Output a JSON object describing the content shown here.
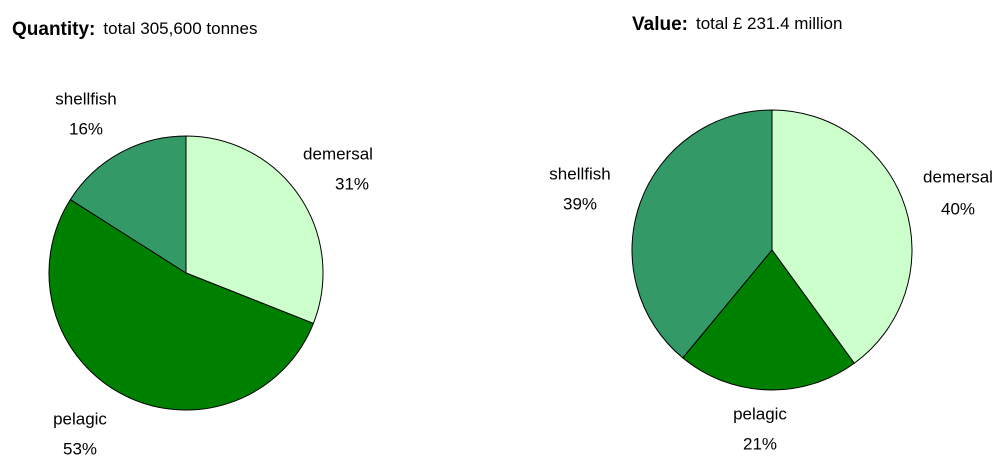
{
  "chart_data": [
    {
      "type": "pie",
      "title": "Quantity:",
      "subtitle": "total 305,600 tonnes",
      "categories": [
        "demersal",
        "pelagic",
        "shellfish"
      ],
      "values": [
        31,
        53,
        16
      ],
      "value_labels": [
        "31%",
        "53%",
        "16%"
      ],
      "colors": [
        "#ccffcc",
        "#008000",
        "#339966"
      ]
    },
    {
      "type": "pie",
      "title": "Value:",
      "subtitle": "total £ 231.4 million",
      "categories": [
        "demersal",
        "pelagic",
        "shellfish"
      ],
      "values": [
        40,
        21,
        39
      ],
      "value_labels": [
        "40%",
        "21%",
        "39%"
      ],
      "colors": [
        "#ccffcc",
        "#008000",
        "#339966"
      ]
    }
  ]
}
